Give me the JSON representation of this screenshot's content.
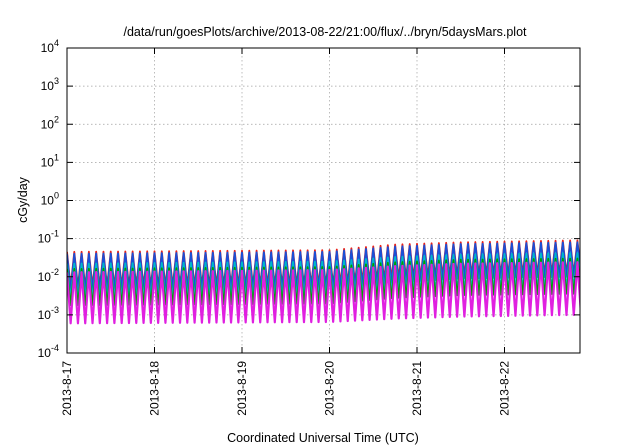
{
  "chart_data": {
    "type": "line",
    "title": "/data/run/goesPlots/archive/2013-08-22/21:00/flux/../bryn/5daysMars.plot",
    "xlabel": "Coordinated Universal Time (UTC)",
    "ylabel": "cGy/day",
    "xlim": [
      "2013-08-17T00:00",
      "2013-08-22T21:00"
    ],
    "ylim": [
      0.0001,
      10000
    ],
    "yscale": "log",
    "grid": true,
    "legend": "none",
    "x_ticks": [
      "2013-8-17",
      "2013-8-18",
      "2013-8-19",
      "2013-8-20",
      "2013-8-21",
      "2013-8-22"
    ],
    "y_ticks": [
      {
        "value": 0.0001,
        "base": "10",
        "exp": "-4"
      },
      {
        "value": 0.001,
        "base": "10",
        "exp": "-3"
      },
      {
        "value": 0.01,
        "base": "10",
        "exp": "-2"
      },
      {
        "value": 0.1,
        "base": "10",
        "exp": "-1"
      },
      {
        "value": 1,
        "base": "10",
        "exp": "0"
      },
      {
        "value": 10,
        "base": "10",
        "exp": "1"
      },
      {
        "value": 100,
        "base": "10",
        "exp": "2"
      },
      {
        "value": 1000,
        "base": "10",
        "exp": "3"
      },
      {
        "value": 10000,
        "base": "10",
        "exp": "4"
      }
    ],
    "oscillation_period_hours": 2.0,
    "series": [
      {
        "color": "#e8221a",
        "peaks": [
          [
            0,
            0.045
          ],
          [
            72,
            0.05
          ],
          [
            90,
            0.07
          ],
          [
            108,
            0.08
          ],
          [
            139,
            0.09
          ]
        ],
        "troughs": [
          [
            0,
            0.0055
          ],
          [
            72,
            0.006
          ],
          [
            90,
            0.009
          ],
          [
            108,
            0.011
          ],
          [
            139,
            0.012
          ]
        ]
      },
      {
        "color": "#1a4fd6",
        "peaks": [
          [
            0,
            0.04
          ],
          [
            72,
            0.045
          ],
          [
            90,
            0.062
          ],
          [
            108,
            0.072
          ],
          [
            139,
            0.08
          ]
        ],
        "troughs": [
          [
            0,
            0.0045
          ],
          [
            72,
            0.005
          ],
          [
            90,
            0.007
          ],
          [
            108,
            0.009
          ],
          [
            139,
            0.01
          ]
        ]
      },
      {
        "color": "#00b8c8",
        "peaks": [
          [
            0,
            0.022
          ],
          [
            72,
            0.025
          ],
          [
            90,
            0.033
          ],
          [
            108,
            0.038
          ],
          [
            139,
            0.042
          ]
        ],
        "troughs": [
          [
            0,
            0.0025
          ],
          [
            72,
            0.0028
          ],
          [
            90,
            0.0038
          ],
          [
            108,
            0.0045
          ],
          [
            139,
            0.005
          ]
        ]
      },
      {
        "color": "#00a000",
        "peaks": [
          [
            0,
            0.016
          ],
          [
            72,
            0.018
          ],
          [
            90,
            0.024
          ],
          [
            108,
            0.028
          ],
          [
            139,
            0.03
          ]
        ],
        "troughs": [
          [
            0,
            0.0018
          ],
          [
            72,
            0.002
          ],
          [
            90,
            0.0028
          ],
          [
            108,
            0.0033
          ],
          [
            139,
            0.0036
          ]
        ]
      },
      {
        "color": "#e020e0",
        "peaks": [
          [
            0,
            0.013
          ],
          [
            72,
            0.015
          ],
          [
            90,
            0.019
          ],
          [
            108,
            0.022
          ],
          [
            139,
            0.024
          ]
        ],
        "troughs": [
          [
            0,
            0.0006
          ],
          [
            72,
            0.00065
          ],
          [
            90,
            0.0008
          ],
          [
            108,
            0.0009
          ],
          [
            139,
            0.001
          ]
        ]
      }
    ]
  }
}
